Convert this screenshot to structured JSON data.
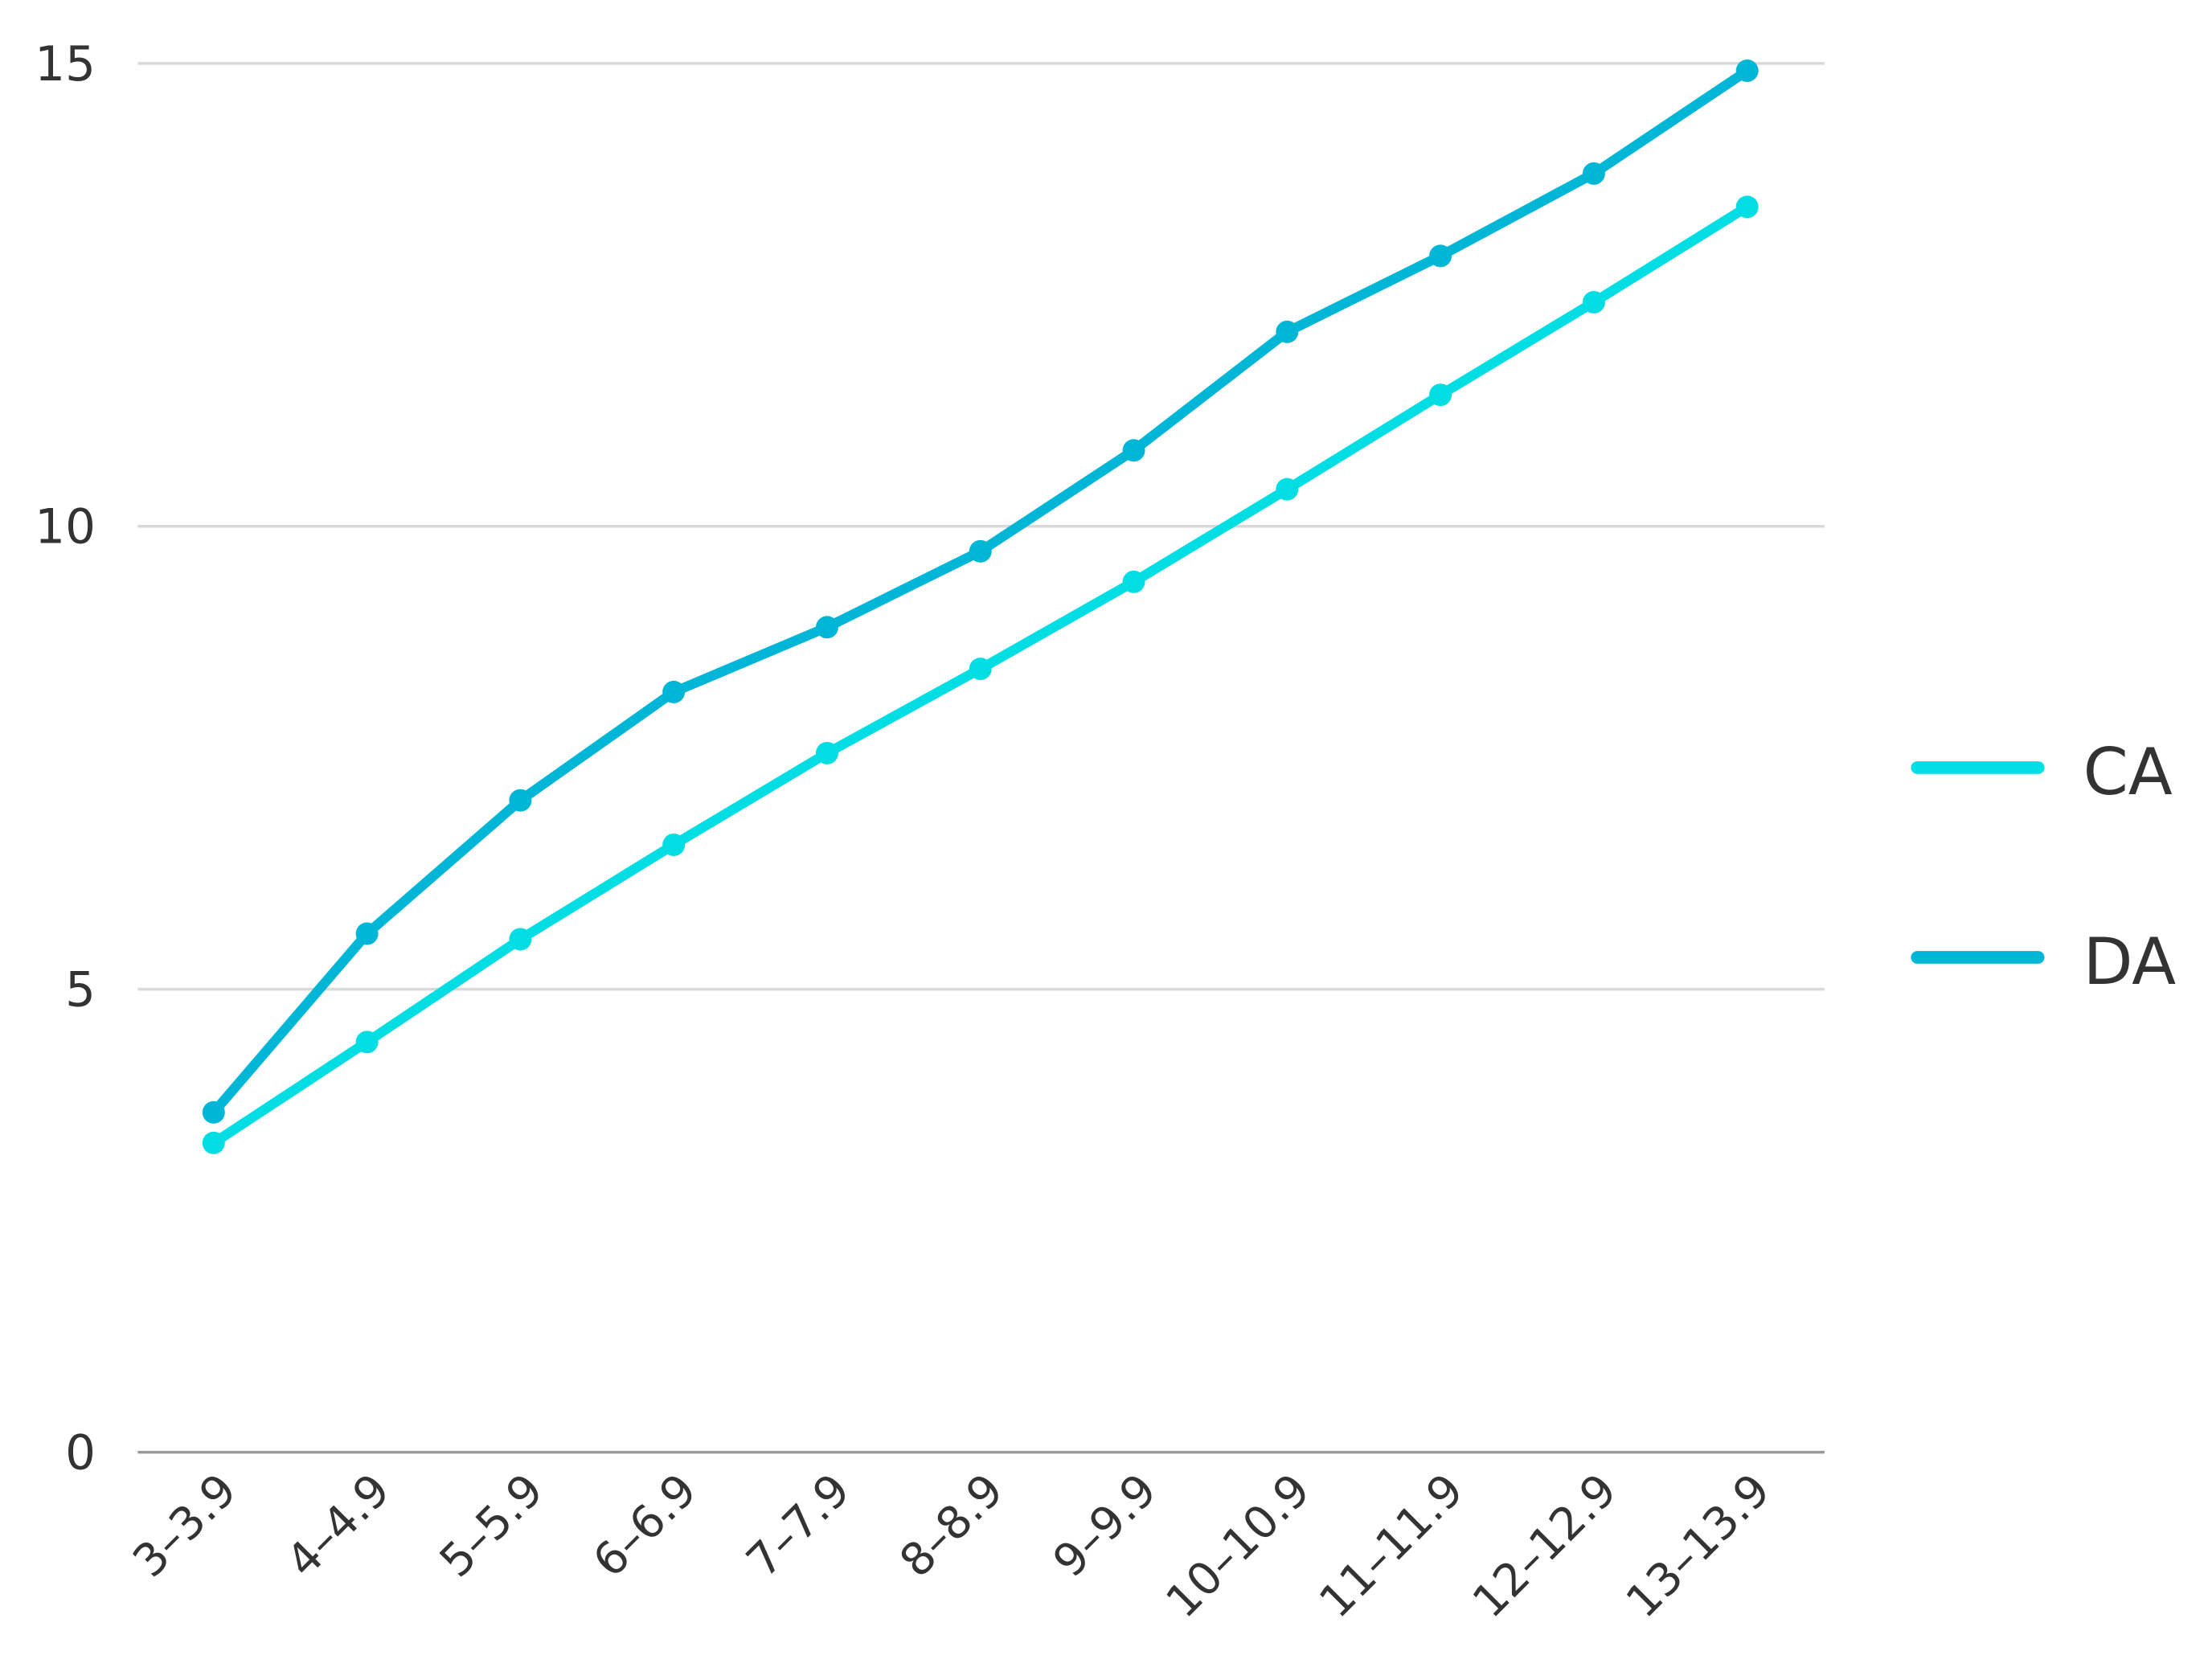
{
  "chart_data": {
    "type": "line",
    "categories": [
      "3–3.9",
      "4–4.9",
      "5–5.9",
      "6–6.9",
      "7–7.9",
      "8–8.9",
      "9–9.9",
      "10–10.9",
      "11–11.9",
      "12–12.9",
      "13–13.9"
    ],
    "series": [
      {
        "name": "CA",
        "color": "#00dde3",
        "values": [
          3.34,
          4.43,
          5.54,
          6.56,
          7.55,
          8.46,
          9.4,
          10.4,
          11.42,
          12.42,
          13.45
        ]
      },
      {
        "name": "DA",
        "color": "#00b6d6",
        "values": [
          3.67,
          5.6,
          7.04,
          8.21,
          8.91,
          9.73,
          10.82,
          12.1,
          12.92,
          13.81,
          14.92
        ]
      }
    ],
    "ylim": [
      0,
      15
    ],
    "yticks": [
      0,
      5,
      10,
      15
    ],
    "grid": true,
    "legend": "right"
  }
}
